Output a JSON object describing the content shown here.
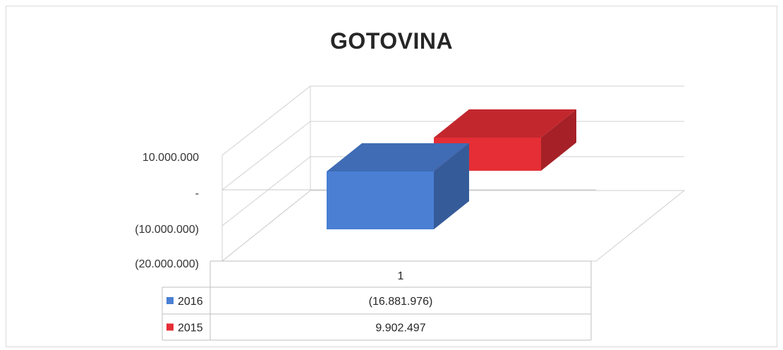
{
  "chart_data": {
    "type": "bar",
    "title": "GOTOVINA",
    "categories": [
      "1"
    ],
    "series": [
      {
        "name": "2016",
        "values": [
          -16881976
        ],
        "color": "#4a7fd4",
        "label": "(16.881.976)"
      },
      {
        "name": "2015",
        "values": [
          9902497
        ],
        "color": "#e52e36",
        "label": "9.902.497"
      }
    ],
    "yticks": [
      {
        "value": 10000000,
        "label": "10.000.000"
      },
      {
        "value": 0,
        "label": "-"
      },
      {
        "value": -10000000,
        "label": "(10.000.000)"
      },
      {
        "value": -20000000,
        "label": "(20.000.000)"
      }
    ],
    "ylim": [
      -20000000,
      20000000
    ],
    "grid": true,
    "data_table": true,
    "legend": "data-table"
  }
}
